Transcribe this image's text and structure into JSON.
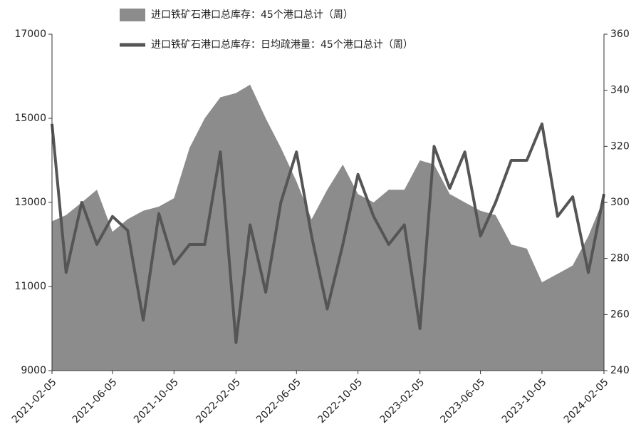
{
  "chart_data": {
    "type": "combo",
    "x": [
      "2021-02-05",
      "2021-03-05",
      "2021-04-05",
      "2021-05-05",
      "2021-06-05",
      "2021-07-05",
      "2021-08-05",
      "2021-09-05",
      "2021-10-05",
      "2021-11-05",
      "2021-12-05",
      "2022-01-05",
      "2022-02-05",
      "2022-03-05",
      "2022-04-05",
      "2022-05-05",
      "2022-06-05",
      "2022-07-05",
      "2022-08-05",
      "2022-09-05",
      "2022-10-05",
      "2022-11-05",
      "2022-12-05",
      "2023-01-05",
      "2023-02-05",
      "2023-03-05",
      "2023-04-05",
      "2023-05-05",
      "2023-06-05",
      "2023-07-05",
      "2023-08-05",
      "2023-09-05",
      "2023-10-05",
      "2023-11-05",
      "2023-12-05",
      "2024-01-05",
      "2024-02-05"
    ],
    "xticks": [
      "2021-02-05",
      "2021-06-05",
      "2021-10-05",
      "2022-02-05",
      "2022-06-05",
      "2022-10-05",
      "2023-02-05",
      "2023-06-05",
      "2023-10-05",
      "2024-02-05"
    ],
    "series": [
      {
        "name": "进口铁矿石港口总库存：45个港口总计（周）",
        "type": "area",
        "color": "#8c8c8c",
        "values": [
          12550,
          12700,
          13000,
          13300,
          12300,
          12600,
          12800,
          12900,
          13100,
          14300,
          15000,
          15500,
          15600,
          15800,
          15000,
          14300,
          13500,
          12600,
          13300,
          13900,
          13200,
          13000,
          13300,
          13300,
          14000,
          13900,
          13200,
          13000,
          12800,
          12700,
          12000,
          11900,
          11100,
          11300,
          11500,
          12200,
          13100
        ]
      },
      {
        "name": "进口铁矿石港口总库存：日均疏港量：45个港口总计（周）",
        "type": "line",
        "color": "#555555",
        "axis": "y2",
        "values": [
          328,
          275,
          300,
          285,
          295,
          290,
          258,
          296,
          278,
          285,
          285,
          318,
          250,
          292,
          268,
          300,
          318,
          288,
          262,
          285,
          310,
          295,
          285,
          292,
          255,
          320,
          305,
          318,
          288,
          300,
          315,
          315,
          328,
          295,
          302,
          275,
          303
        ]
      }
    ],
    "ylim": [
      9000,
      17000
    ],
    "yticks": [
      9000,
      11000,
      13000,
      15000,
      17000
    ],
    "y2lim": [
      240,
      360
    ],
    "y2ticks": [
      240,
      260,
      280,
      300,
      320,
      340,
      360
    ]
  }
}
